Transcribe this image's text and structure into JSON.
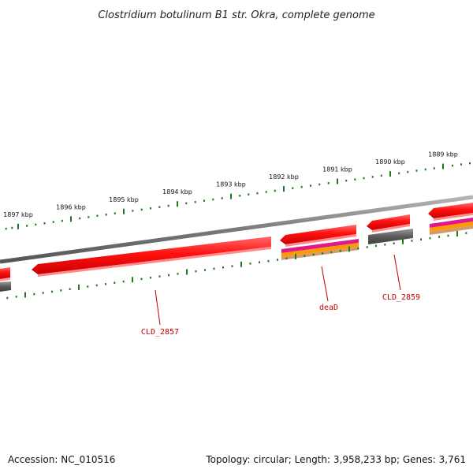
{
  "title": "Clostridium botulinum B1 str. Okra, complete genome",
  "footer": {
    "accession": "Accession: NC_010516",
    "summary": "Topology: circular; Length: 3,958,233 bp; Genes: 3,761"
  },
  "colors": {
    "backbone": "#7a7a7a",
    "cds": "#ff1a1a",
    "gene_grey": "#5a5a5a",
    "magenta": "#e0188c",
    "orange": "#ff9900",
    "tan": "#c8a070",
    "ticks": "#1f7a1f",
    "label": "#c00000"
  },
  "scale": {
    "unit": "kbp",
    "labels": [
      "1897 kbp",
      "1896 kbp",
      "1895 kbp",
      "1894 kbp",
      "1893 kbp",
      "1892 kbp",
      "1891 kbp",
      "1890 kbp",
      "1889 kbp"
    ]
  },
  "genes": [
    {
      "name": "CLD_2857"
    },
    {
      "name": "deaD"
    },
    {
      "name": "CLD_2859"
    }
  ]
}
